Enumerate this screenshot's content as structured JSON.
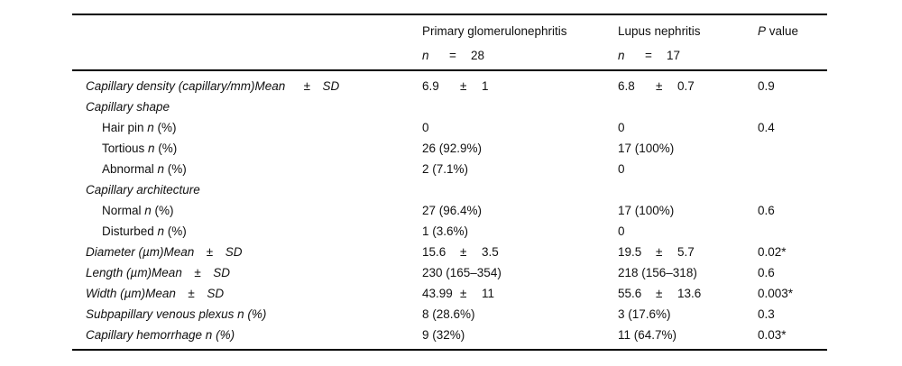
{
  "header": {
    "col2": {
      "title": "Primary glomerulonephritis",
      "n_label": "n",
      "eq": "=",
      "n_value": "28"
    },
    "col3": {
      "title": "Lupus nephritis",
      "n_label": "n",
      "eq": "=",
      "n_value": "17"
    },
    "col4": {
      "p_italic": "P",
      "p_rest": " value"
    }
  },
  "rows": [
    {
      "label": "Capillary density (capillary/mm)Mean  ± SD",
      "c1": {
        "a": "6.9",
        "pm": "±",
        "b": "1"
      },
      "c2": {
        "a": "6.8",
        "pm": "±",
        "b": "0.7"
      },
      "p": "0.9"
    },
    {
      "label": "Capillary shape"
    },
    {
      "label_pre": "Hair pin ",
      "label_n": "n",
      "label_post": " (%)",
      "c1": {
        "a": "0"
      },
      "c2": {
        "a": "0"
      },
      "p": "0.4"
    },
    {
      "label_pre": "Tortious ",
      "label_n": "n",
      "label_post": " (%)",
      "c1": {
        "a": "26 (92.9%)"
      },
      "c2": {
        "a": "17 (100%)"
      },
      "p": ""
    },
    {
      "label_pre": "Abnormal ",
      "label_n": "n",
      "label_post": " (%)",
      "c1": {
        "a": "2 (7.1%)"
      },
      "c2": {
        "a": "0"
      },
      "p": ""
    },
    {
      "label": "Capillary architecture"
    },
    {
      "label_pre": "Normal ",
      "label_n": "n",
      "label_post": " (%)",
      "c1": {
        "a": "27 (96.4%)"
      },
      "c2": {
        "a": "17 (100%)"
      },
      "p": "0.6"
    },
    {
      "label_pre": "Disturbed ",
      "label_n": "n",
      "label_post": " (%)",
      "c1": {
        "a": "1 (3.6%)"
      },
      "c2": {
        "a": "0"
      },
      "p": ""
    },
    {
      "label": "Diameter (µm)Mean ± SD",
      "c1": {
        "a": "15.6",
        "pm": "±",
        "b": "3.5"
      },
      "c2": {
        "a": "19.5",
        "pm": "±",
        "b": "5.7"
      },
      "p": "0.02*"
    },
    {
      "label": "Length (µm)Mean ± SD",
      "c1": {
        "a": "230 (165–354)"
      },
      "c2": {
        "a": "218 (156–318)"
      },
      "p": "0.6"
    },
    {
      "label": "Width (µm)Mean ± SD",
      "c1": {
        "a": "43.99",
        "pm": "±",
        "b": "11"
      },
      "c2": {
        "a": "55.6",
        "pm": "±",
        "b": "13.6"
      },
      "p": "0.003*"
    },
    {
      "label": "Subpapillary venous plexus n (%)",
      "c1": {
        "a": "8 (28.6%)"
      },
      "c2": {
        "a": "3 (17.6%)"
      },
      "p": "0.3"
    },
    {
      "label": "Capillary hemorrhage n (%)",
      "c1": {
        "a": "9 (32%)"
      },
      "c2": {
        "a": "11 (64.7%)"
      },
      "p": "0.03*"
    }
  ]
}
